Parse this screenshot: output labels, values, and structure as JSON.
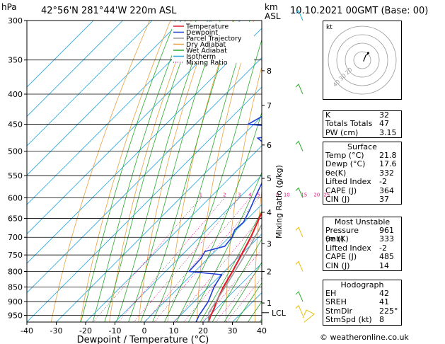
{
  "header": {
    "pressure_unit": "hPa",
    "location": "42°56'N  281°44'W  220m  ASL",
    "height_unit_km": "km",
    "height_unit_asl": "ASL",
    "datetime": "10.10.2021  00GMT  (Base: 00)"
  },
  "chart_data": {
    "type": "line",
    "subtype": "skew-T log-p diagram",
    "xlabel": "Dewpoint / Temperature (°C)",
    "ylabel": "hPa",
    "y2label": "Mixing Ratio (g/kg)",
    "xlim": [
      -40,
      40
    ],
    "ylim": [
      975,
      300
    ],
    "y_scale": "log",
    "pressure_ticks": [
      300,
      350,
      400,
      450,
      500,
      550,
      600,
      650,
      700,
      750,
      800,
      850,
      900,
      950
    ],
    "temperature_ticks": [
      -40,
      -30,
      -20,
      -10,
      0,
      10,
      20,
      30,
      40
    ],
    "height_ticks": [
      {
        "label": "8",
        "p": 365
      },
      {
        "label": "7",
        "p": 418
      },
      {
        "label": "6",
        "p": 488
      },
      {
        "label": "5",
        "p": 556
      },
      {
        "label": "4",
        "p": 635
      },
      {
        "label": "3",
        "p": 718
      },
      {
        "label": "2",
        "p": 800
      },
      {
        "label": "1",
        "p": 905
      }
    ],
    "lcl_label": "LCL",
    "lcl_p": 940,
    "mixing_ratio_labels": [
      "1",
      "2",
      "3",
      "4",
      "5",
      "8",
      "10",
      "15",
      "20",
      "25"
    ],
    "mixing_ratio_values": [
      1,
      2,
      3,
      4,
      5,
      8,
      10,
      15,
      20,
      25
    ],
    "legend": [
      "Temperature",
      "Dewpoint",
      "Parcel Trajectory",
      "Dry Adiabat",
      "Wet Adiabat",
      "Isotherm",
      "Mixing Ratio"
    ],
    "legend_colors": [
      "#e0202e",
      "#1f3ed6",
      "#9a9a9a",
      "#e8a040",
      "#2aaa2a",
      "#2aa8e0",
      "#d6207a"
    ],
    "series": [
      {
        "name": "Temperature",
        "color": "#e0202e",
        "points": [
          [
            975,
            21.8
          ],
          [
            950,
            20.4
          ],
          [
            925,
            19.2
          ],
          [
            900,
            17.6
          ],
          [
            850,
            15.0
          ],
          [
            800,
            12.8
          ],
          [
            750,
            10.2
          ],
          [
            700,
            7.4
          ],
          [
            650,
            3.8
          ],
          [
            600,
            0.2
          ],
          [
            550,
            -3.8
          ],
          [
            500,
            -8.2
          ],
          [
            450,
            -13.6
          ],
          [
            400,
            -19.8
          ],
          [
            350,
            -27.0
          ],
          [
            300,
            -36.0
          ]
        ]
      },
      {
        "name": "Dewpoint",
        "color": "#1f3ed6",
        "points": [
          [
            975,
            17.6
          ],
          [
            950,
            16.4
          ],
          [
            925,
            15.6
          ],
          [
            900,
            14.8
          ],
          [
            850,
            11.8
          ],
          [
            810,
            10.2
          ],
          [
            800,
            -2.0
          ],
          [
            760,
            -2.4
          ],
          [
            755,
            -2.6
          ],
          [
            740,
            -3.4
          ],
          [
            725,
            1.6
          ],
          [
            700,
            1.0
          ],
          [
            680,
            -0.6
          ],
          [
            660,
            -0.2
          ],
          [
            630,
            -2.2
          ],
          [
            600,
            -4.6
          ],
          [
            560,
            -7.8
          ],
          [
            540,
            -10.8
          ],
          [
            520,
            -13.8
          ],
          [
            500,
            -14.2
          ],
          [
            475,
            -24.0
          ],
          [
            462,
            -12.0
          ],
          [
            455,
            -20.0
          ],
          [
            450,
            -32.0
          ],
          [
            400,
            -24.0
          ],
          [
            380,
            -28.0
          ],
          [
            340,
            -17.0
          ],
          [
            320,
            -30.0
          ],
          [
            300,
            -33.0
          ]
        ]
      },
      {
        "name": "Parcel Trajectory",
        "color": "#9a9a9a",
        "points": [
          [
            975,
            21.8
          ],
          [
            940,
            18.8
          ],
          [
            900,
            17.4
          ],
          [
            850,
            15.6
          ],
          [
            800,
            13.6
          ],
          [
            750,
            11.4
          ],
          [
            700,
            8.8
          ],
          [
            650,
            5.8
          ],
          [
            600,
            2.4
          ],
          [
            550,
            -1.6
          ],
          [
            500,
            -6.4
          ],
          [
            450,
            -12.0
          ],
          [
            400,
            -18.8
          ],
          [
            350,
            -27.2
          ],
          [
            300,
            -37.5
          ]
        ]
      }
    ]
  },
  "hodograph": {
    "label": "kt",
    "ring_labels": [
      "20",
      "30",
      "40"
    ],
    "rings_kt": [
      10,
      20,
      30,
      40
    ],
    "wind_points_kt": [
      [
        2,
        -2
      ],
      [
        4,
        3
      ],
      [
        6,
        8
      ],
      [
        9,
        10
      ],
      [
        10,
        12
      ]
    ]
  },
  "indices": {
    "rows": [
      {
        "label": "K",
        "value": "32"
      },
      {
        "label": "Totals Totals",
        "value": "47"
      },
      {
        "label": "PW (cm)",
        "value": "3.15"
      }
    ]
  },
  "surface": {
    "title": "Surface",
    "rows": [
      {
        "label": "Temp (°C)",
        "value": "21.8"
      },
      {
        "label": "Dewp (°C)",
        "value": "17.6"
      },
      {
        "label": "θe(K)",
        "value": "332"
      },
      {
        "label": "Lifted Index",
        "value": "-2"
      },
      {
        "label": "CAPE (J)",
        "value": "364"
      },
      {
        "label": "CIN (J)",
        "value": "37"
      }
    ]
  },
  "most_unstable": {
    "title": "Most Unstable",
    "rows": [
      {
        "label": "Pressure (mb)",
        "value": "961"
      },
      {
        "label": "θe (K)",
        "value": "333"
      },
      {
        "label": "Lifted Index",
        "value": "-2"
      },
      {
        "label": "CAPE (J)",
        "value": "485"
      },
      {
        "label": "CIN (J)",
        "value": "14"
      }
    ]
  },
  "hodo_table": {
    "title": "Hodograph",
    "rows": [
      {
        "label": "EH",
        "value": "42"
      },
      {
        "label": "SREH",
        "value": "41"
      },
      {
        "label": "StmDir",
        "value": "225°"
      },
      {
        "label": "StmSpd (kt)",
        "value": "8"
      }
    ]
  },
  "footer": "© weatheronline.co.uk"
}
